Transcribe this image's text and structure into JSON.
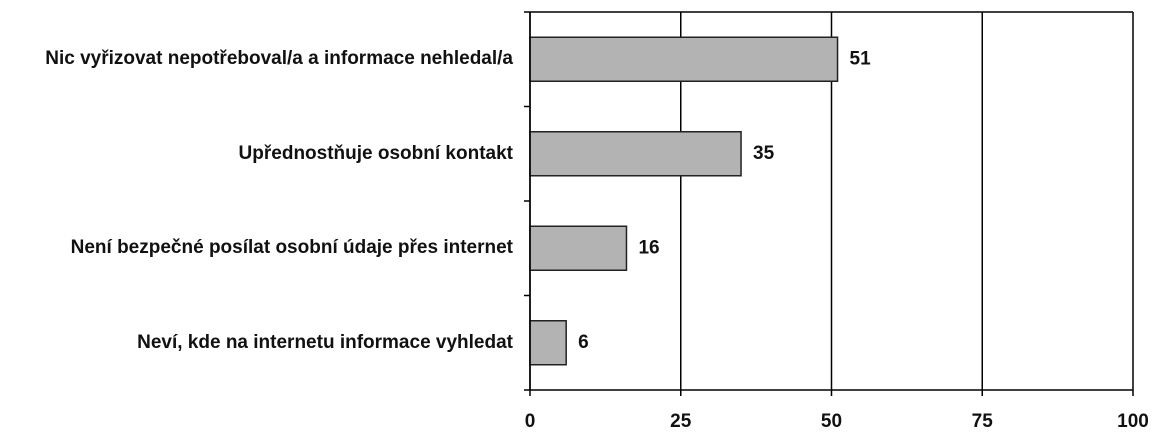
{
  "chart_data": {
    "type": "bar",
    "orientation": "horizontal",
    "categories": [
      "Nic vyřizovat nepotřeboval/a a informace nehledal/a",
      "Upřednostňuje osobní kontakt",
      "Není bezpečné posílat osobní údaje přes internet",
      "Neví, kde na internetu informace vyhledat"
    ],
    "values": [
      51,
      35,
      16,
      6
    ],
    "color": "#b3b3b3",
    "xlim": [
      0,
      100
    ],
    "xticks": [
      0,
      25,
      50,
      75,
      100
    ],
    "grid": true
  }
}
